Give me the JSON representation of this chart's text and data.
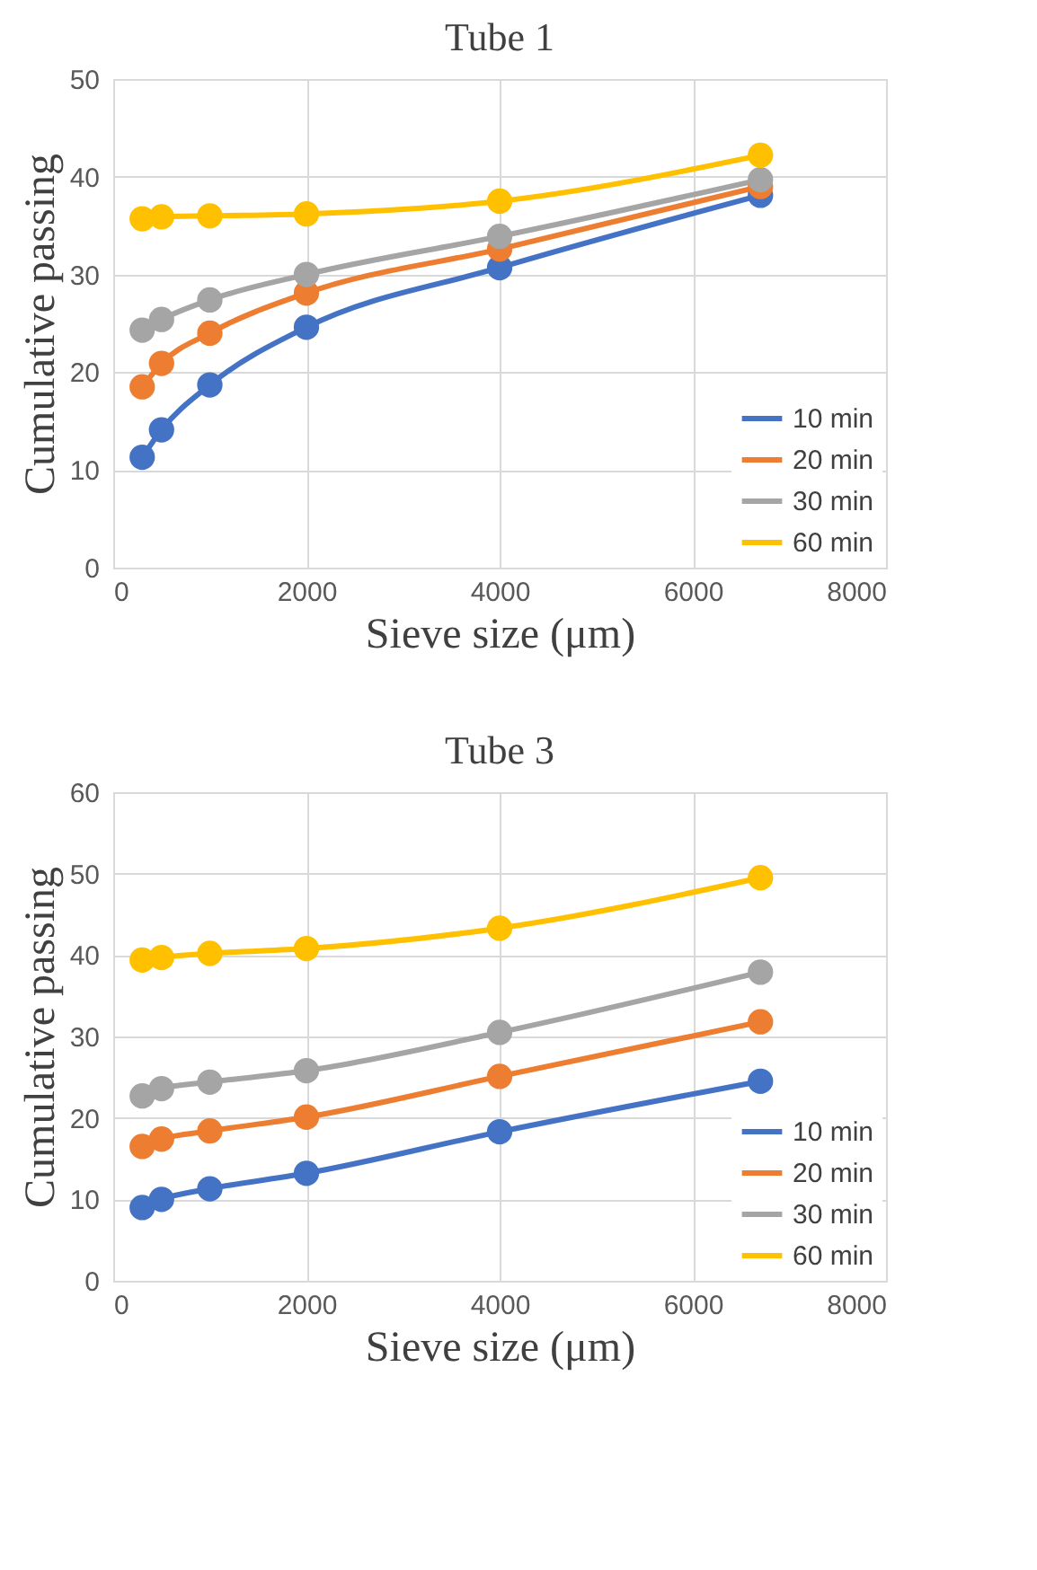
{
  "chart_data": [
    {
      "type": "line",
      "title": "Tube 1",
      "xlabel": "Sieve size (μm)",
      "ylabel": "Cumulative passing",
      "x": [
        300,
        500,
        1000,
        2000,
        4000,
        6700
      ],
      "xlim": [
        0,
        8000
      ],
      "xticks": [
        0,
        2000,
        4000,
        6000,
        8000
      ],
      "ylim": [
        0,
        50
      ],
      "yticks": [
        0,
        10,
        20,
        30,
        40,
        50
      ],
      "grid": true,
      "legend": "bottom right",
      "marker": "circle",
      "line_style": "solid",
      "series": [
        {
          "name": "10 min",
          "color": "#4472c4",
          "values": [
            11.3,
            14.1,
            18.7,
            24.6,
            30.7,
            38.1
          ]
        },
        {
          "name": "20 min",
          "color": "#ed7d31",
          "values": [
            18.5,
            20.9,
            24.0,
            28.1,
            32.6,
            39.0
          ]
        },
        {
          "name": "30 min",
          "color": "#a5a5a5",
          "values": [
            24.3,
            25.4,
            27.4,
            30.0,
            33.9,
            39.7
          ]
        },
        {
          "name": "60 min",
          "color": "#ffc000",
          "values": [
            35.7,
            35.9,
            36.0,
            36.2,
            37.5,
            42.2
          ]
        }
      ]
    },
    {
      "type": "line",
      "title": "Tube 3",
      "xlabel": "Sieve size (μm)",
      "ylabel": "Cumulative passing",
      "x": [
        300,
        500,
        1000,
        2000,
        4000,
        6700
      ],
      "xlim": [
        0,
        8000
      ],
      "xticks": [
        0,
        2000,
        4000,
        6000,
        8000
      ],
      "ylim": [
        0,
        60
      ],
      "yticks": [
        0,
        10,
        20,
        30,
        40,
        50,
        60
      ],
      "grid": true,
      "legend": "bottom right",
      "marker": "circle",
      "line_style": "solid",
      "series": [
        {
          "name": "10 min",
          "color": "#4472c4",
          "values": [
            9.0,
            10.0,
            11.3,
            13.2,
            18.3,
            24.5
          ]
        },
        {
          "name": "20 min",
          "color": "#ed7d31",
          "values": [
            16.5,
            17.4,
            18.4,
            20.1,
            25.1,
            31.8
          ]
        },
        {
          "name": "30 min",
          "color": "#a5a5a5",
          "values": [
            22.7,
            23.6,
            24.4,
            25.8,
            30.5,
            37.9
          ]
        },
        {
          "name": "60 min",
          "color": "#ffc000",
          "values": [
            39.4,
            39.7,
            40.2,
            40.8,
            43.3,
            49.5
          ]
        }
      ]
    }
  ]
}
